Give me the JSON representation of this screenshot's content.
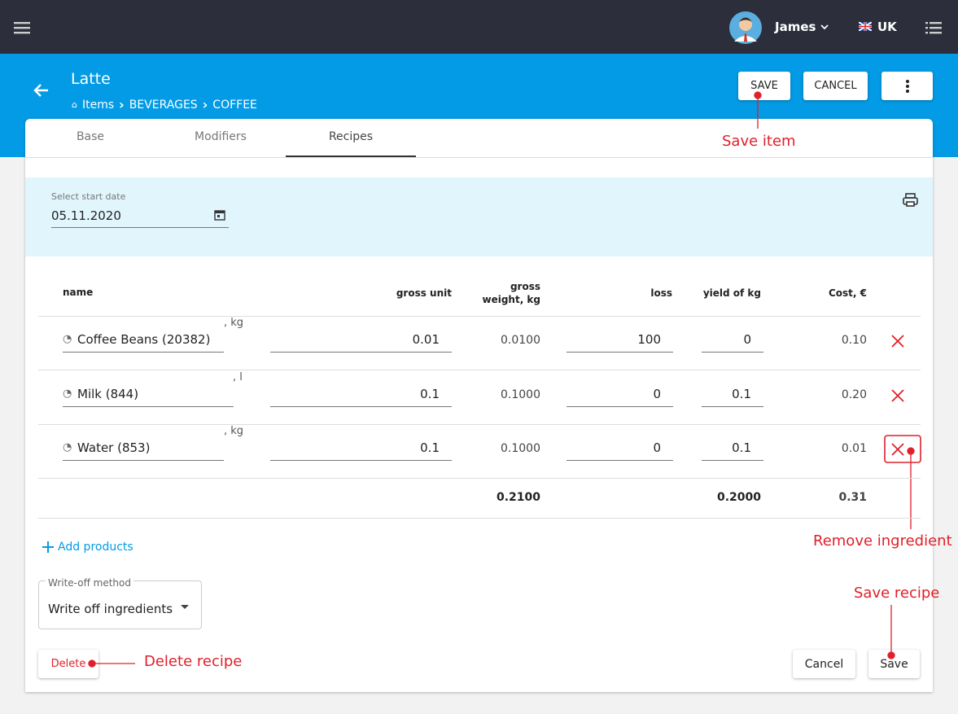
{
  "topbar": {
    "user": "James",
    "locale": "UK"
  },
  "header": {
    "title": "Latte",
    "breadcrumb": [
      "Items",
      "BEVERAGES",
      "COFFEE"
    ],
    "buttons": [
      "SAVE",
      "CANCEL"
    ]
  },
  "tabs": [
    "Base",
    "Modifiers",
    "Recipes"
  ],
  "date_field": {
    "label": "Select start date",
    "value": "05.11.2020"
  },
  "table": {
    "columns": [
      "name",
      "gross unit",
      "gross weight, kg",
      "loss",
      "yield of kg",
      "Cost, €"
    ],
    "rows": [
      {
        "name": "Coffee Beans (20382)",
        "unit": ", kg",
        "gross_unit": "0.01",
        "gross_weight": "0.0100",
        "loss": "100",
        "yield": "0",
        "cost": "0.10"
      },
      {
        "name": "Milk (844)",
        "unit": ", l",
        "gross_unit": "0.1",
        "gross_weight": "0.1000",
        "loss": "0",
        "yield": "0.1",
        "cost": "0.20"
      },
      {
        "name": "Water (853)",
        "unit": ", kg",
        "gross_unit": "0.1",
        "gross_weight": "0.1000",
        "loss": "0",
        "yield": "0.1",
        "cost": "0.01"
      }
    ],
    "totals": {
      "gross_weight": "0.2100",
      "yield": "0.2000",
      "cost": "0.31"
    }
  },
  "add_products": "Add products",
  "write_off": {
    "label": "Write-off method",
    "value": "Write off ingredients"
  },
  "buttons": {
    "delete": "Delete",
    "cancel": "Cancel",
    "save": "Save"
  },
  "annotations": {
    "save_item": "Save item",
    "remove_ingredient": "Remove ingredient",
    "save_recipe": "Save recipe",
    "delete_recipe": "Delete recipe"
  }
}
